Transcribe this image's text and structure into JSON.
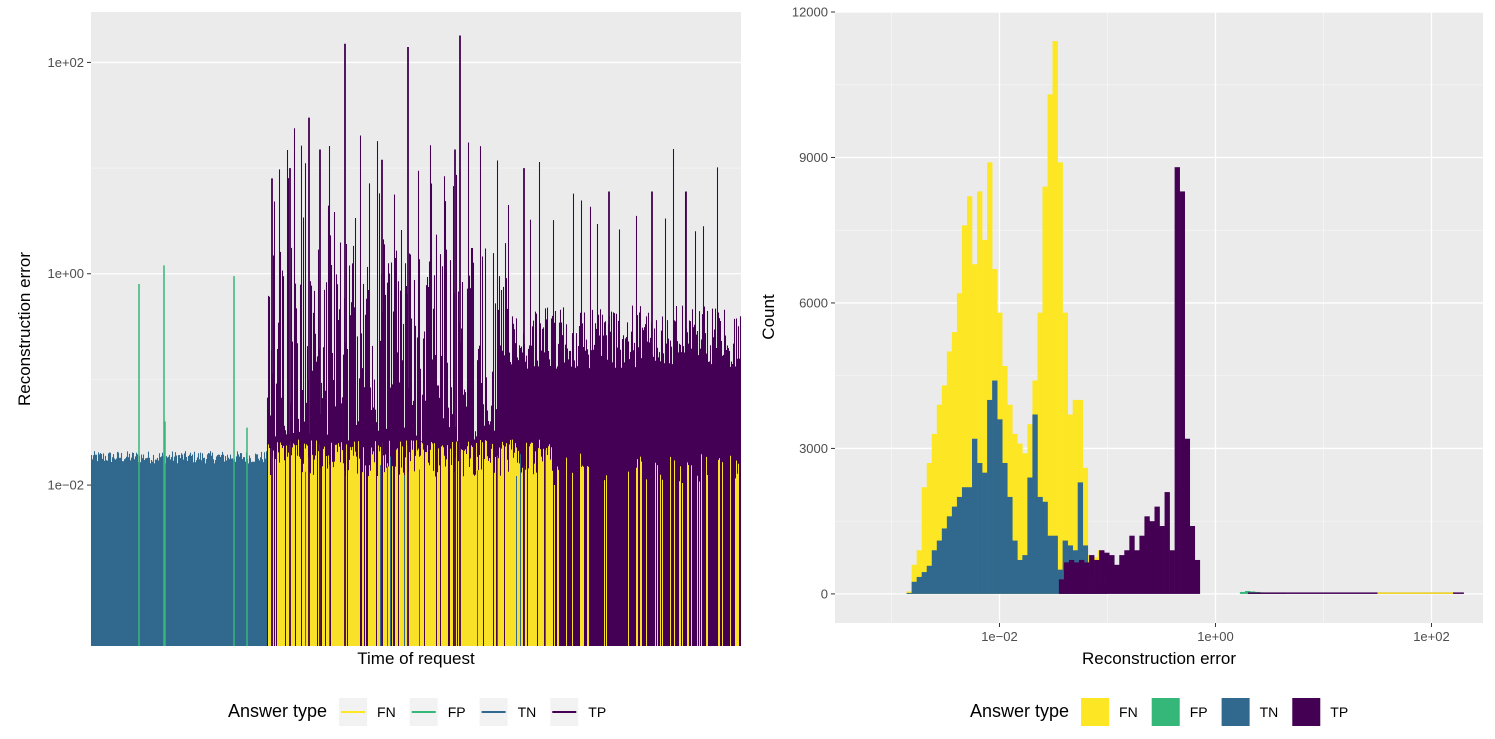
{
  "colors": {
    "FN": "#fde725",
    "FP": "#35b779",
    "TN": "#31688e",
    "TP": "#440154",
    "panel": "#ebebeb",
    "grid_major": "#ffffff"
  },
  "chart_data": [
    {
      "type": "bar",
      "xlabel": "Time of request",
      "ylabel": "Reconstruction error",
      "yscale": "log10",
      "ylim": [
        0.0003,
        300
      ],
      "ytick_labels": [
        "1e−02",
        "1e+00",
        "1e+02"
      ],
      "ytick_values": [
        0.01,
        1,
        100
      ],
      "legend": {
        "title": "Answer type",
        "entries": [
          "FN",
          "FP",
          "TN",
          "TP"
        ],
        "position": "bottom",
        "key_style": "line"
      },
      "segments": [
        {
          "name": "TN",
          "range_fraction": [
            0.0,
            0.27
          ],
          "baseline_error": 0.018
        },
        {
          "name": "FN",
          "range_fraction": [
            0.27,
            0.71
          ],
          "baseline_error": 0.02
        },
        {
          "name": "TP",
          "range_fraction": [
            0.27,
            1.0
          ],
          "baseline_error": 0.15
        }
      ],
      "approx_spike_errors": {
        "FP": [
          0.8,
          1.2,
          0.95,
          0.04,
          0.035
        ],
        "TP": [
          150,
          140,
          100,
          30,
          20,
          10,
          5,
          6,
          25,
          8,
          10,
          10,
          6
        ]
      },
      "grid": true
    },
    {
      "type": "bar",
      "subtype": "histogram",
      "xlabel": "Reconstruction error",
      "ylabel": "Count",
      "xscale": "log10",
      "xlim": [
        0.0003,
        300
      ],
      "ylim": [
        -600,
        12000
      ],
      "xtick_labels": [
        "1e−02",
        "1e+00",
        "1e+02"
      ],
      "xtick_values": [
        0.01,
        1,
        100
      ],
      "ytick_labels": [
        "0",
        "3000",
        "6000",
        "9000",
        "12000"
      ],
      "ytick_values": [
        0,
        3000,
        6000,
        9000,
        12000
      ],
      "legend": {
        "title": "Answer type",
        "entries": [
          "FN",
          "FP",
          "TN",
          "TP"
        ],
        "position": "bottom",
        "key_style": "fill"
      },
      "series": [
        {
          "name": "FN_total",
          "log10_bin_start": -2.86,
          "bin_width_log10": 0.0466,
          "values": [
            50,
            600,
            900,
            2200,
            2700,
            3300,
            3900,
            4300,
            5000,
            5400,
            6200,
            7600,
            8200,
            6800,
            8300,
            7300,
            8900,
            6700,
            5800,
            4700,
            3900,
            3300,
            3100,
            2900,
            3500,
            4400,
            5800,
            8400,
            10300,
            11400,
            8900,
            5800,
            3700,
            4000,
            4000,
            2600,
            800,
            750,
            900,
            400
          ]
        },
        {
          "name": "TN",
          "log10_bin_start": -2.86,
          "bin_width_log10": 0.0466,
          "values": [
            20,
            250,
            350,
            450,
            580,
            900,
            1100,
            1350,
            1600,
            1800,
            2000,
            2200,
            2200,
            3200,
            2700,
            2500,
            4000,
            4400,
            3600,
            2700,
            2000,
            1100,
            700,
            800,
            2400,
            3700,
            2000,
            1900,
            1200,
            1200,
            500,
            1100,
            1000,
            900,
            2300,
            1000,
            600,
            400,
            300,
            200
          ]
        },
        {
          "name": "TP",
          "log10_bin_start": -1.45,
          "bin_width_log10": 0.0466,
          "values": [
            300,
            650,
            700,
            650,
            700,
            650,
            800,
            700,
            900,
            850,
            800,
            600,
            800,
            900,
            1200,
            900,
            1200,
            1600,
            1500,
            1800,
            1400,
            2100,
            900,
            8800,
            8300,
            3200,
            1400,
            700
          ]
        },
        {
          "name": "FP",
          "log10_bin_start": -0.1,
          "bin_width_log10": 0.0466,
          "values": [
            0,
            0,
            0,
            0,
            0,
            0,
            0,
            40,
            60,
            50,
            40,
            30,
            20,
            20,
            10,
            10
          ]
        }
      ],
      "grid": true
    }
  ]
}
